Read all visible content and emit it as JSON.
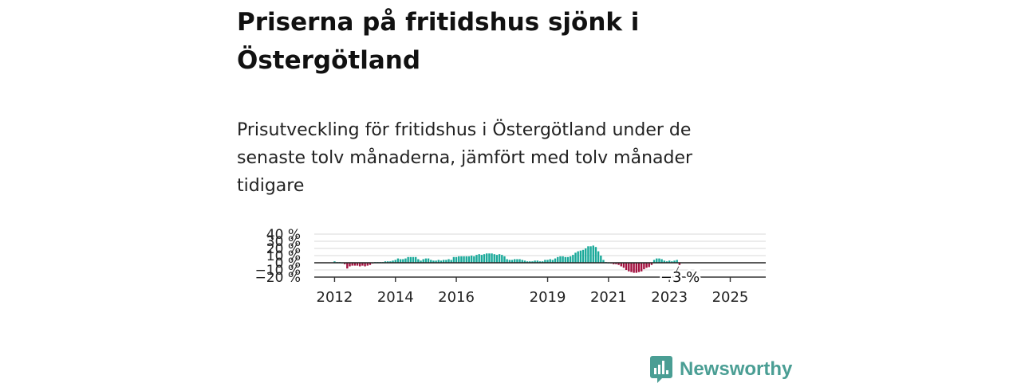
{
  "title": "Priserna på fritidshus sjönk i Östergötland",
  "subtitle": "Prisutveckling för fritidshus i Östergötland under de senaste tolv månaderna, jämfört med tolv månader tidigare",
  "brand": {
    "name": "Newsworthy",
    "color": "#4a9e94"
  },
  "colors": {
    "positive": "#1aa99a",
    "negative": "#a3113f",
    "zero_line": "#222222",
    "grid": "#d9d9d9"
  },
  "chart_data": {
    "type": "bar",
    "x_ticks": [
      "2012",
      "2014",
      "2016",
      "2019",
      "2021",
      "2023",
      "2025"
    ],
    "y_ticks": [
      "40 %",
      "30 %",
      "20 %",
      "10 %",
      "0 %",
      "−10 %",
      "−20 %"
    ],
    "y_tick_values": [
      40,
      30,
      20,
      10,
      0,
      -10,
      -20
    ],
    "ylim": [
      -20,
      40
    ],
    "xlim": [
      "2011-05",
      "2026-03"
    ],
    "grid": true,
    "last_value_label": "−3 %",
    "series": [
      {
        "start": "2012-01",
        "frequency": "monthly",
        "values": [
          2,
          1,
          1,
          0,
          -2,
          -8,
          -5,
          -4,
          -4,
          -4,
          -5,
          -4,
          -5,
          -4,
          -3,
          -1,
          1,
          1,
          1,
          1,
          2,
          2,
          2,
          3,
          4,
          6,
          5,
          5,
          6,
          8,
          8,
          8,
          8,
          5,
          3,
          5,
          6,
          6,
          4,
          3,
          3,
          4,
          3,
          4,
          4,
          5,
          4,
          8,
          8,
          9,
          9,
          9,
          9,
          9,
          10,
          9,
          11,
          12,
          11,
          12,
          13,
          13,
          13,
          12,
          11,
          12,
          11,
          9,
          5,
          4,
          4,
          5,
          5,
          5,
          4,
          3,
          2,
          2,
          2,
          3,
          3,
          2,
          2,
          4,
          4,
          5,
          4,
          6,
          8,
          9,
          9,
          8,
          8,
          9,
          11,
          14,
          16,
          17,
          18,
          20,
          23,
          23,
          24,
          22,
          16,
          10,
          4,
          1,
          0,
          -1,
          -2,
          -2,
          -3,
          -5,
          -7,
          -10,
          -12,
          -13,
          -14,
          -14,
          -13,
          -12,
          -9,
          -7,
          -6,
          -3,
          4,
          6,
          6,
          5,
          3,
          2,
          3,
          2,
          3,
          4,
          -3
        ]
      }
    ]
  }
}
